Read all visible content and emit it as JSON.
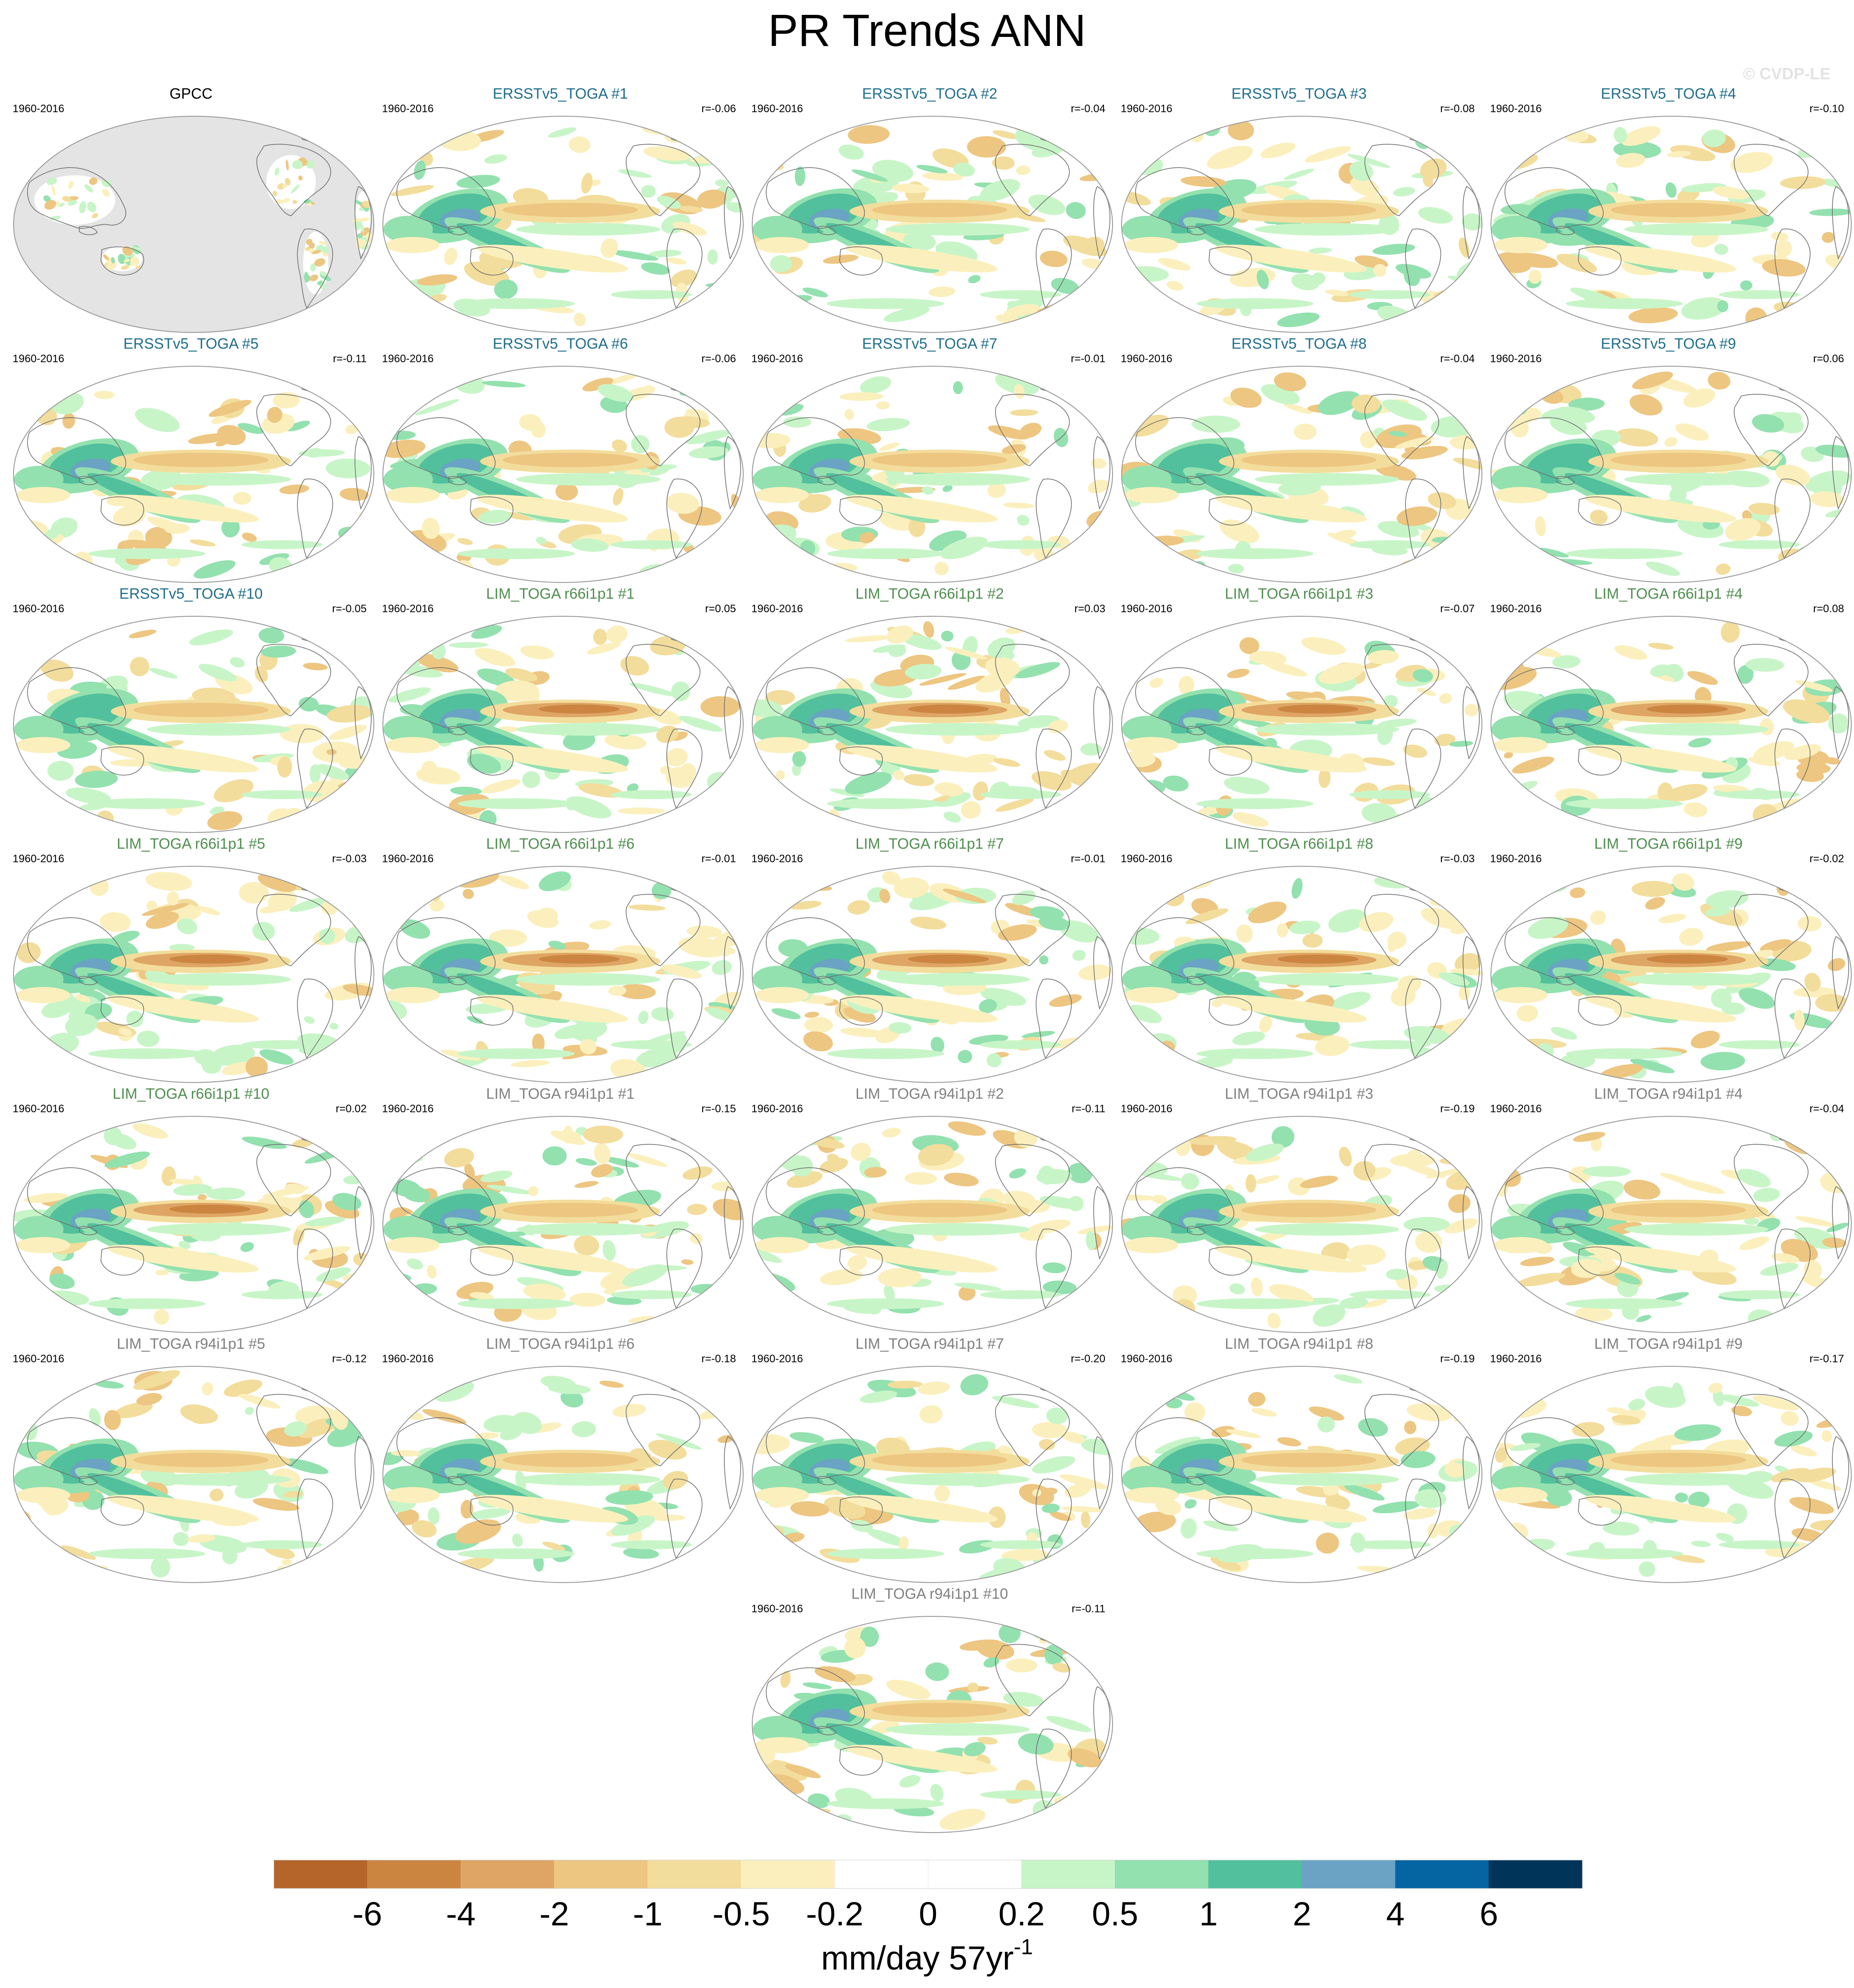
{
  "title": "PR Trends ANN",
  "watermark": "© CVDP-LE",
  "colors": {
    "ersst_title": "#1f6e8c",
    "lim66_title": "#4f8e4f",
    "lim94_title": "#808080",
    "gpcc_title": "#000000",
    "ocean_missing": "#e4e4e4",
    "coast": "#707070"
  },
  "chart_data": {
    "type": "heatmap",
    "description": "Map panels of annual precipitation trend",
    "panels": [
      {
        "title": "GPCC",
        "period": "1960-2016",
        "r": "",
        "group": "gpcc"
      },
      {
        "title": "ERSSTv5_TOGA #1",
        "period": "1960-2016",
        "r": "r=-0.06",
        "group": "ersst"
      },
      {
        "title": "ERSSTv5_TOGA #2",
        "period": "1960-2016",
        "r": "r=-0.04",
        "group": "ersst"
      },
      {
        "title": "ERSSTv5_TOGA #3",
        "period": "1960-2016",
        "r": "r=-0.08",
        "group": "ersst"
      },
      {
        "title": "ERSSTv5_TOGA #4",
        "period": "1960-2016",
        "r": "r=-0.10",
        "group": "ersst"
      },
      {
        "title": "ERSSTv5_TOGA #5",
        "period": "1960-2016",
        "r": "r=-0.11",
        "group": "ersst"
      },
      {
        "title": "ERSSTv5_TOGA #6",
        "period": "1960-2016",
        "r": "r=-0.06",
        "group": "ersst"
      },
      {
        "title": "ERSSTv5_TOGA #7",
        "period": "1960-2016",
        "r": "r=-0.01",
        "group": "ersst"
      },
      {
        "title": "ERSSTv5_TOGA #8",
        "period": "1960-2016",
        "r": "r=-0.04",
        "group": "ersst"
      },
      {
        "title": "ERSSTv5_TOGA #9",
        "period": "1960-2016",
        "r": "r=0.06",
        "group": "ersst"
      },
      {
        "title": "ERSSTv5_TOGA #10",
        "period": "1960-2016",
        "r": "r=-0.05",
        "group": "ersst"
      },
      {
        "title": "LIM_TOGA r66i1p1 #1",
        "period": "1960-2016",
        "r": "r=0.05",
        "group": "lim66"
      },
      {
        "title": "LIM_TOGA r66i1p1 #2",
        "period": "1960-2016",
        "r": "r=0.03",
        "group": "lim66"
      },
      {
        "title": "LIM_TOGA r66i1p1 #3",
        "period": "1960-2016",
        "r": "r=-0.07",
        "group": "lim66"
      },
      {
        "title": "LIM_TOGA r66i1p1 #4",
        "period": "1960-2016",
        "r": "r=0.08",
        "group": "lim66"
      },
      {
        "title": "LIM_TOGA r66i1p1 #5",
        "period": "1960-2016",
        "r": "r=-0.03",
        "group": "lim66"
      },
      {
        "title": "LIM_TOGA r66i1p1 #6",
        "period": "1960-2016",
        "r": "r=-0.01",
        "group": "lim66"
      },
      {
        "title": "LIM_TOGA r66i1p1 #7",
        "period": "1960-2016",
        "r": "r=-0.01",
        "group": "lim66"
      },
      {
        "title": "LIM_TOGA r66i1p1 #8",
        "period": "1960-2016",
        "r": "r=-0.03",
        "group": "lim66"
      },
      {
        "title": "LIM_TOGA r66i1p1 #9",
        "period": "1960-2016",
        "r": "r=-0.02",
        "group": "lim66"
      },
      {
        "title": "LIM_TOGA r66i1p1 #10",
        "period": "1960-2016",
        "r": "r=0.02",
        "group": "lim66"
      },
      {
        "title": "LIM_TOGA r94i1p1 #1",
        "period": "1960-2016",
        "r": "r=-0.15",
        "group": "lim94"
      },
      {
        "title": "LIM_TOGA r94i1p1 #2",
        "period": "1960-2016",
        "r": "r=-0.11",
        "group": "lim94"
      },
      {
        "title": "LIM_TOGA r94i1p1 #3",
        "period": "1960-2016",
        "r": "r=-0.19",
        "group": "lim94"
      },
      {
        "title": "LIM_TOGA r94i1p1 #4",
        "period": "1960-2016",
        "r": "r=-0.04",
        "group": "lim94"
      },
      {
        "title": "LIM_TOGA r94i1p1 #5",
        "period": "1960-2016",
        "r": "r=-0.12",
        "group": "lim94"
      },
      {
        "title": "LIM_TOGA r94i1p1 #6",
        "period": "1960-2016",
        "r": "r=-0.18",
        "group": "lim94"
      },
      {
        "title": "LIM_TOGA r94i1p1 #7",
        "period": "1960-2016",
        "r": "r=-0.20",
        "group": "lim94"
      },
      {
        "title": "LIM_TOGA r94i1p1 #8",
        "period": "1960-2016",
        "r": "r=-0.19",
        "group": "lim94"
      },
      {
        "title": "LIM_TOGA r94i1p1 #9",
        "period": "1960-2016",
        "r": "r=-0.17",
        "group": "lim94"
      },
      {
        "title": "LIM_TOGA r94i1p1 #10",
        "period": "1960-2016",
        "r": "r=-0.11",
        "group": "lim94"
      }
    ],
    "colorbar": {
      "ticks": [
        "-6",
        "-4",
        "-2",
        "-1",
        "-0.5",
        "-0.2",
        "0",
        "0.2",
        "0.5",
        "1",
        "2",
        "4",
        "6"
      ],
      "colors": [
        "#b5652a",
        "#cc8541",
        "#dea564",
        "#edc681",
        "#f3dd9c",
        "#fbf0bd",
        "#ffffff",
        "#ffffff",
        "#c8f5c8",
        "#93e1af",
        "#52c09c",
        "#6aa3c3",
        "#0465a2",
        "#003559"
      ],
      "label": "mm/day 57yr",
      "label_superscript": "-1"
    }
  }
}
